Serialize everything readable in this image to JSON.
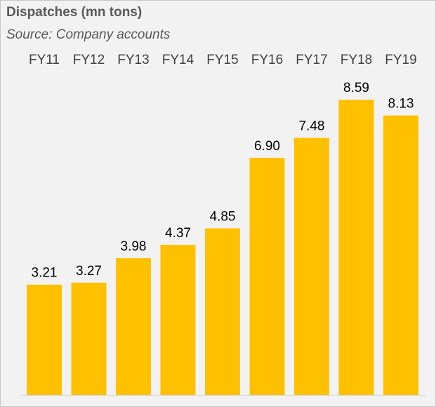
{
  "chart_data": {
    "type": "bar",
    "title": "Dispatches (mn tons)",
    "subtitle": "Source: Company accounts",
    "categories": [
      "FY11",
      "FY12",
      "FY13",
      "FY14",
      "FY15",
      "FY16",
      "FY17",
      "FY18",
      "FY19"
    ],
    "values": [
      3.21,
      3.27,
      3.98,
      4.37,
      4.85,
      6.9,
      7.48,
      8.59,
      8.13
    ],
    "value_labels": [
      "3.21",
      "3.27",
      "3.98",
      "4.37",
      "4.85",
      "6.90",
      "7.48",
      "8.59",
      "8.13"
    ],
    "category_axis_position": "top",
    "value_axis_shown": false,
    "grid": false,
    "colors": {
      "bar": "#FFC000",
      "background": "#F2F2F2",
      "title": "#595959",
      "category_label": "#404040",
      "value_label": "#000000"
    }
  }
}
